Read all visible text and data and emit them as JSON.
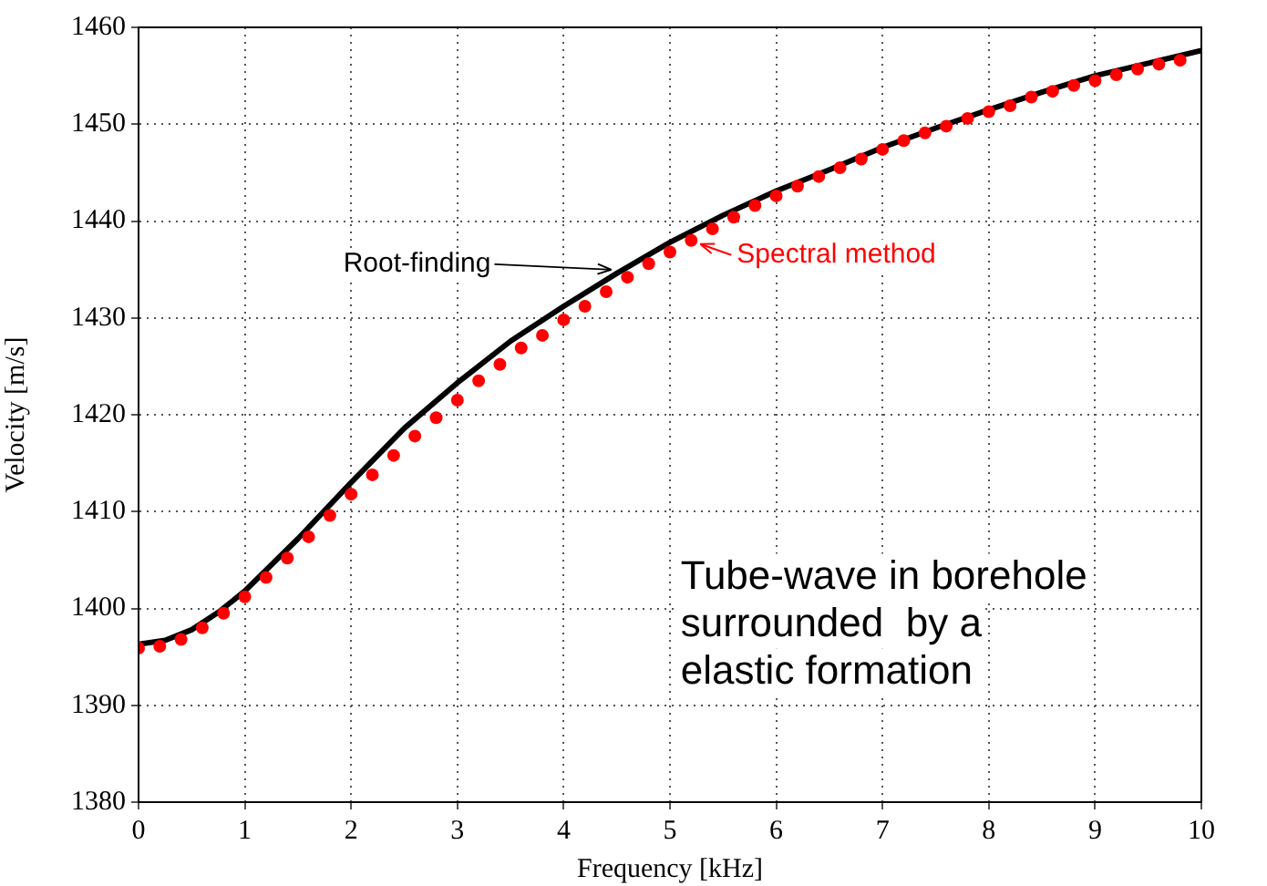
{
  "chart_data": {
    "type": "line",
    "xlabel": "Frequency [kHz]",
    "ylabel": "Velocity [m/s]",
    "xlim": [
      0,
      10
    ],
    "xticks": [
      0,
      1,
      2,
      3,
      4,
      5,
      6,
      7,
      8,
      9,
      10
    ],
    "ylim": [
      1380,
      1460
    ],
    "yticks": [
      1380,
      1390,
      1400,
      1410,
      1420,
      1430,
      1440,
      1450,
      1460
    ],
    "grid": true,
    "series": [
      {
        "name": "Root-finding",
        "type": "line",
        "color": "#000000",
        "marker": "none",
        "line_style": "solid",
        "x": [
          0,
          0.25,
          0.5,
          0.75,
          1,
          1.5,
          2,
          2.5,
          3,
          3.5,
          4,
          4.5,
          5,
          5.5,
          6,
          6.5,
          7,
          7.5,
          8,
          8.5,
          9,
          9.5,
          10
        ],
        "values": [
          1396.3,
          1396.7,
          1397.8,
          1399.6,
          1401.8,
          1407.2,
          1413,
          1418.6,
          1423.3,
          1427.6,
          1431.2,
          1434.6,
          1437.8,
          1440.6,
          1443.1,
          1445.3,
          1447.6,
          1449.6,
          1451.5,
          1453.3,
          1455,
          1456.3,
          1457.6
        ]
      },
      {
        "name": "Spectral method",
        "type": "scatter",
        "color": "#ff0000",
        "marker": "circle",
        "x": [
          0,
          0.2,
          0.4,
          0.6,
          0.8,
          1,
          1.2,
          1.4,
          1.6,
          1.8,
          2,
          2.2,
          2.4,
          2.6,
          2.8,
          3,
          3.2,
          3.4,
          3.6,
          3.8,
          4,
          4.2,
          4.4,
          4.6,
          4.8,
          5,
          5.2,
          5.4,
          5.6,
          5.8,
          6,
          6.2,
          6.4,
          6.6,
          6.8,
          7,
          7.2,
          7.4,
          7.6,
          7.8,
          8,
          8.2,
          8.4,
          8.6,
          8.8,
          9,
          9.2,
          9.4,
          9.6,
          9.8
        ],
        "values": [
          1395.9,
          1396.1,
          1396.8,
          1398.0,
          1399.5,
          1401.2,
          1403.2,
          1405.2,
          1407.4,
          1409.6,
          1411.8,
          1413.8,
          1415.8,
          1417.8,
          1419.7,
          1421.5,
          1423.5,
          1425.2,
          1426.9,
          1428.2,
          1429.8,
          1431.2,
          1432.7,
          1434.2,
          1435.6,
          1436.8,
          1438.0,
          1439.2,
          1440.4,
          1441.6,
          1442.6,
          1443.6,
          1444.6,
          1445.5,
          1446.4,
          1447.4,
          1448.3,
          1449.1,
          1449.8,
          1450.6,
          1451.3,
          1451.9,
          1452.8,
          1453.4,
          1454.0,
          1454.5,
          1455.1,
          1455.7,
          1456.2,
          1456.6
        ]
      }
    ],
    "annotations": [
      "Tube-wave in borehole\nsurrounded  by a\nelastic formation"
    ]
  }
}
